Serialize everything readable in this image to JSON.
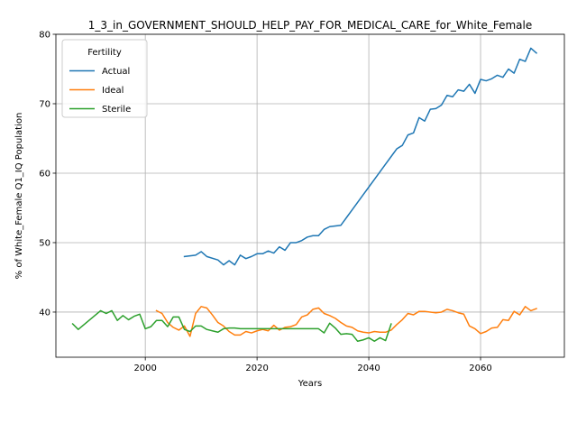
{
  "chart_data": {
    "type": "line",
    "title": "1_3_in_GOVERNMENT_SHOULD_HELP_PAY_FOR_MEDICAL_CARE_for_White_Female",
    "xlabel": "Years",
    "ylabel": "% of White_Female Q1_IQ Population",
    "xlim": [
      1984,
      2075
    ],
    "ylim": [
      33.5,
      80
    ],
    "xticks": [
      2000,
      2020,
      2040,
      2060
    ],
    "yticks": [
      40,
      50,
      60,
      70,
      80
    ],
    "grid": true,
    "legend": {
      "title": "Fertility",
      "placement": "top-left"
    },
    "series": [
      {
        "name": "Actual",
        "color": "#1f77b4",
        "x": [
          2007,
          2009,
          2010,
          2011,
          2013,
          2014,
          2015,
          2016,
          2017,
          2018,
          2019,
          2020,
          2021,
          2022,
          2023,
          2024,
          2025,
          2026,
          2027,
          2028,
          2029,
          2030,
          2031,
          2032,
          2033,
          2034,
          2035,
          2036,
          2037,
          2038,
          2039,
          2040,
          2041,
          2042,
          2043,
          2044,
          2045,
          2046,
          2047,
          2048,
          2049,
          2050,
          2051,
          2052,
          2053,
          2054,
          2055,
          2056,
          2057,
          2058,
          2059,
          2060,
          2061,
          2062,
          2063,
          2064,
          2065,
          2066,
          2067,
          2068,
          2069,
          2070
        ],
        "y": [
          48.0,
          48.2,
          48.7,
          48.0,
          47.5,
          46.8,
          47.4,
          46.8,
          48.2,
          47.7,
          48.0,
          48.4,
          48.4,
          48.8,
          48.5,
          49.4,
          48.9,
          50.0,
          50.0,
          50.3,
          50.8,
          51.0,
          51.0,
          51.9,
          52.3,
          52.4,
          52.5,
          53.6,
          54.7,
          55.8,
          56.9,
          58.0,
          59.1,
          60.2,
          61.3,
          62.4,
          63.5,
          64.0,
          65.5,
          65.8,
          68.0,
          67.5,
          69.2,
          69.3,
          69.8,
          71.2,
          71.0,
          72.0,
          71.8,
          72.8,
          71.5,
          73.5,
          73.3,
          73.6,
          74.1,
          73.8,
          75.0,
          74.4,
          76.4,
          76.1,
          78.0,
          77.3
        ]
      },
      {
        "name": "Ideal",
        "color": "#ff7f0e",
        "x": [
          2002,
          2003,
          2004,
          2005,
          2006,
          2007,
          2008,
          2009,
          2010,
          2011,
          2012,
          2013,
          2014,
          2015,
          2016,
          2017,
          2018,
          2019,
          2020,
          2021,
          2022,
          2023,
          2024,
          2025,
          2026,
          2027,
          2028,
          2029,
          2030,
          2031,
          2032,
          2033,
          2034,
          2035,
          2036,
          2037,
          2038,
          2039,
          2040,
          2041,
          2042,
          2043,
          2044,
          2045,
          2046,
          2047,
          2048,
          2049,
          2050,
          2051,
          2052,
          2053,
          2054,
          2055,
          2056,
          2057,
          2058,
          2059,
          2060,
          2061,
          2062,
          2063,
          2064,
          2065,
          2066,
          2067,
          2068,
          2069,
          2070
        ],
        "y": [
          40.2,
          39.8,
          38.5,
          37.8,
          37.4,
          38.0,
          36.5,
          39.8,
          40.8,
          40.6,
          39.6,
          38.5,
          38.0,
          37.2,
          36.7,
          36.7,
          37.2,
          37.0,
          37.3,
          37.5,
          37.3,
          38.1,
          37.4,
          37.8,
          37.9,
          38.2,
          39.3,
          39.6,
          40.4,
          40.6,
          39.8,
          39.5,
          39.1,
          38.5,
          38.0,
          37.8,
          37.3,
          37.1,
          37.0,
          37.2,
          37.1,
          37.1,
          37.4,
          38.2,
          38.9,
          39.8,
          39.6,
          40.1,
          40.1,
          40.0,
          39.9,
          40.0,
          40.4,
          40.2,
          39.9,
          39.7,
          38.0,
          37.6,
          36.9,
          37.2,
          37.7,
          37.8,
          38.9,
          38.8,
          40.1,
          39.6,
          40.8,
          40.2,
          40.5
        ]
      },
      {
        "name": "Sterile",
        "color": "#2ca02c",
        "x": [
          1987,
          1988,
          1992,
          1993,
          1994,
          1995,
          1996,
          1997,
          1998,
          1999,
          2000,
          2001,
          2002,
          2003,
          2004,
          2005,
          2006,
          2007,
          2008,
          2009,
          2010,
          2011,
          2012,
          2013,
          2014,
          2015,
          2016,
          2017,
          2018,
          2019,
          2020,
          2021,
          2022,
          2023,
          2024,
          2025,
          2026,
          2027,
          2028,
          2029,
          2030,
          2031,
          2032,
          2033,
          2034,
          2035,
          2036,
          2037,
          2038,
          2039,
          2040,
          2041,
          2042,
          2043,
          2044
        ],
        "y": [
          38.3,
          37.5,
          40.2,
          39.8,
          40.2,
          38.8,
          39.5,
          38.9,
          39.4,
          39.7,
          37.6,
          37.9,
          38.8,
          38.8,
          37.9,
          39.3,
          39.3,
          37.5,
          37.2,
          38.0,
          38.0,
          37.5,
          37.3,
          37.1,
          37.6,
          37.7,
          37.7,
          37.6,
          37.6,
          37.6,
          37.6,
          37.6,
          37.6,
          37.6,
          37.6,
          37.6,
          37.6,
          37.6,
          37.6,
          37.6,
          37.6,
          37.6,
          37.0,
          38.4,
          37.7,
          36.8,
          36.9,
          36.8,
          35.8,
          36.0,
          36.3,
          35.8,
          36.3,
          35.9,
          38.3
        ]
      }
    ]
  }
}
